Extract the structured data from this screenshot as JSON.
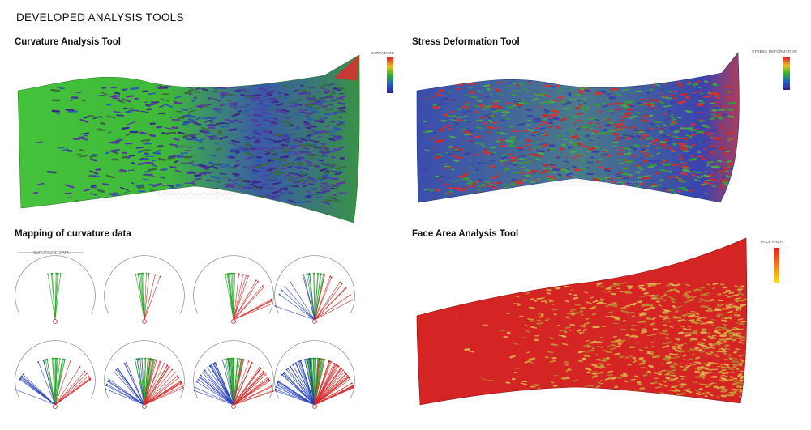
{
  "page": {
    "title": "DEVELOPED ANALYSIS TOOLS"
  },
  "panels": {
    "curvature": {
      "title": "Curvature Analysis Tool",
      "legend_title": "CURVATURE",
      "legend_colors": [
        "#e02020",
        "#e8c020",
        "#30b030",
        "#2060c8",
        "#3a1e8a"
      ]
    },
    "stress": {
      "title": "Stress Deformation Tool",
      "legend_title": "STRESS DEFORMATION",
      "legend_colors": [
        "#e02020",
        "#e8c020",
        "#30b030",
        "#2060c8",
        "#3a1e8a"
      ]
    },
    "mapping": {
      "title": "Mapping of curvature data",
      "chart_caption": "CURVATURE DATA"
    },
    "face_area": {
      "title": "Face Area Analysis Tool",
      "legend_title": "FACE AREA",
      "legend_colors": [
        "#e02020",
        "#f08020",
        "#f8e020"
      ]
    }
  },
  "chart_data": [
    {
      "type": "radial-fan",
      "name": "curvature-mapping-1",
      "series": [
        {
          "color": "#2fa52f",
          "lines": 8
        },
        {
          "color": "#d42a2a",
          "lines": 0
        },
        {
          "color": "#2a43b8",
          "lines": 0
        }
      ]
    },
    {
      "type": "radial-fan",
      "name": "curvature-mapping-2",
      "series": [
        {
          "color": "#2fa52f",
          "lines": 10
        },
        {
          "color": "#d42a2a",
          "lines": 3
        },
        {
          "color": "#2a43b8",
          "lines": 0
        }
      ]
    },
    {
      "type": "radial-fan",
      "name": "curvature-mapping-3",
      "series": [
        {
          "color": "#2fa52f",
          "lines": 10
        },
        {
          "color": "#d42a2a",
          "lines": 12
        },
        {
          "color": "#2a43b8",
          "lines": 0
        }
      ]
    },
    {
      "type": "radial-fan",
      "name": "curvature-mapping-4",
      "series": [
        {
          "color": "#2fa52f",
          "lines": 12
        },
        {
          "color": "#d42a2a",
          "lines": 10
        },
        {
          "color": "#2a43b8",
          "lines": 8
        }
      ]
    },
    {
      "type": "radial-fan",
      "name": "curvature-mapping-5",
      "series": [
        {
          "color": "#2fa52f",
          "lines": 18
        },
        {
          "color": "#d42a2a",
          "lines": 8
        },
        {
          "color": "#2a43b8",
          "lines": 10
        }
      ]
    },
    {
      "type": "radial-fan",
      "name": "curvature-mapping-6",
      "series": [
        {
          "color": "#2fa52f",
          "lines": 22
        },
        {
          "color": "#d42a2a",
          "lines": 22
        },
        {
          "color": "#2a43b8",
          "lines": 16
        }
      ]
    },
    {
      "type": "radial-fan",
      "name": "curvature-mapping-7",
      "series": [
        {
          "color": "#2fa52f",
          "lines": 26
        },
        {
          "color": "#d42a2a",
          "lines": 24
        },
        {
          "color": "#2a43b8",
          "lines": 22
        }
      ]
    },
    {
      "type": "radial-fan",
      "name": "curvature-mapping-8",
      "series": [
        {
          "color": "#2fa52f",
          "lines": 36
        },
        {
          "color": "#d42a2a",
          "lines": 34
        },
        {
          "color": "#2a43b8",
          "lines": 32
        }
      ]
    }
  ]
}
